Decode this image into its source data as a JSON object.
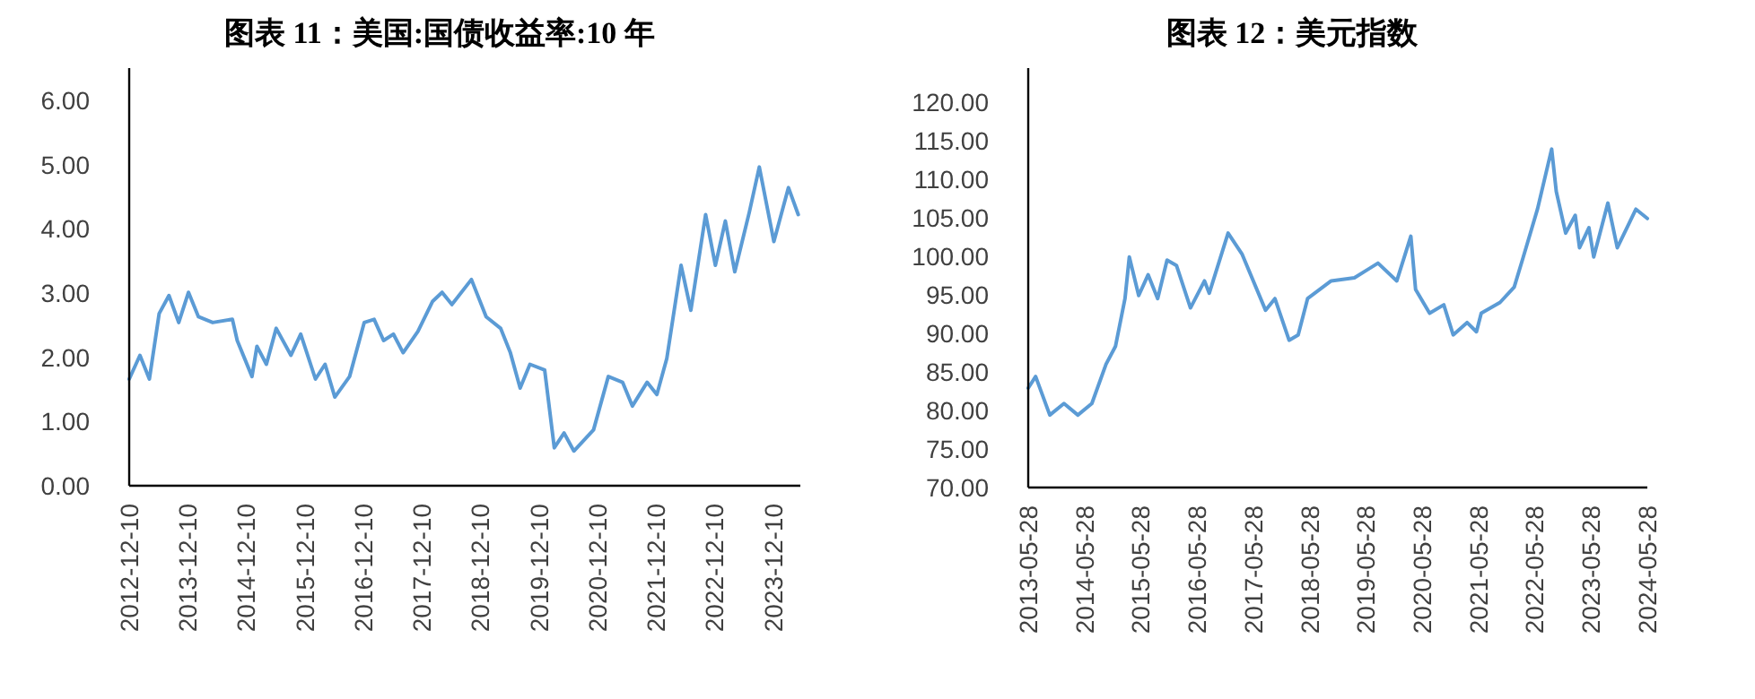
{
  "chart_data": [
    {
      "type": "line",
      "title": "图表 11：美国:国债收益率:10 年",
      "xlim": [
        "2012-12-10",
        "2024-05-28"
      ],
      "xticks": [
        "2012-12-10",
        "2013-12-10",
        "2014-12-10",
        "2015-12-10",
        "2016-12-10",
        "2017-12-10",
        "2018-12-10",
        "2019-12-10",
        "2020-12-10",
        "2021-12-10",
        "2022-12-10",
        "2023-12-10"
      ],
      "ylim": [
        0,
        6.5
      ],
      "yticks": [
        {
          "value": 0,
          "label": "0.00"
        },
        {
          "value": 1,
          "label": "1.00"
        },
        {
          "value": 2,
          "label": "2.00"
        },
        {
          "value": 3,
          "label": "3.00"
        },
        {
          "value": 4,
          "label": "4.00"
        },
        {
          "value": 5,
          "label": "5.00"
        },
        {
          "value": 6,
          "label": "6.00"
        }
      ],
      "marker": "none",
      "line_style": "solid",
      "series": [
        {
          "color": "#5b9bd5",
          "x": [
            "2012-12-10",
            "2013-02",
            "2013-04",
            "2013-06",
            "2013-08",
            "2013-10",
            "2013-12",
            "2014-02",
            "2014-05",
            "2014-09",
            "2014-10",
            "2015-01",
            "2015-02",
            "2015-04",
            "2015-06",
            "2015-09",
            "2015-11",
            "2016-02",
            "2016-04",
            "2016-06",
            "2016-09",
            "2016-12",
            "2017-02",
            "2017-04",
            "2017-06",
            "2017-08",
            "2017-11",
            "2018-02",
            "2018-04",
            "2018-06",
            "2018-10",
            "2019-01",
            "2019-04",
            "2019-06",
            "2019-08",
            "2019-10",
            "2020-01",
            "2020-03",
            "2020-05",
            "2020-07",
            "2020-11",
            "2021-02",
            "2021-05",
            "2021-07",
            "2021-10",
            "2021-12",
            "2022-02",
            "2022-05",
            "2022-07",
            "2022-10",
            "2022-12",
            "2023-02",
            "2023-04",
            "2023-07",
            "2023-09",
            "2023-12",
            "2024-03",
            "2024-05"
          ],
          "values": [
            1.66,
            2.03,
            1.66,
            2.68,
            2.96,
            2.54,
            3.01,
            2.63,
            2.54,
            2.59,
            2.26,
            1.7,
            2.17,
            1.89,
            2.45,
            2.03,
            2.36,
            1.66,
            1.89,
            1.38,
            1.7,
            2.54,
            2.59,
            2.26,
            2.36,
            2.07,
            2.4,
            2.87,
            3.01,
            2.82,
            3.21,
            2.63,
            2.45,
            2.07,
            1.52,
            1.89,
            1.8,
            0.59,
            0.82,
            0.54,
            0.87,
            1.7,
            1.61,
            1.24,
            1.61,
            1.42,
            1.98,
            3.43,
            2.73,
            4.22,
            3.43,
            4.12,
            3.33,
            4.26,
            4.96,
            3.8,
            4.64,
            4.22
          ]
        }
      ]
    },
    {
      "type": "line",
      "title": "图表 12：美元指数",
      "xlim": [
        "2013-05-28",
        "2024-05-28"
      ],
      "xticks": [
        "2013-05-28",
        "2014-05-28",
        "2015-05-28",
        "2016-05-28",
        "2017-05-28",
        "2018-05-28",
        "2019-05-28",
        "2020-05-28",
        "2021-05-28",
        "2022-05-28",
        "2023-05-28",
        "2024-05-28"
      ],
      "ylim": [
        70,
        124.4
      ],
      "yticks": [
        {
          "value": 70,
          "label": "70.00"
        },
        {
          "value": 75,
          "label": "75.00"
        },
        {
          "value": 80,
          "label": "80.00"
        },
        {
          "value": 85,
          "label": "85.00"
        },
        {
          "value": 90,
          "label": "90.00"
        },
        {
          "value": 95,
          "label": "95.00"
        },
        {
          "value": 100,
          "label": "100.00"
        },
        {
          "value": 105,
          "label": "105.00"
        },
        {
          "value": 110,
          "label": "110.00"
        },
        {
          "value": 115,
          "label": "115.00"
        },
        {
          "value": 120,
          "label": "120.00"
        }
      ],
      "marker": "none",
      "line_style": "solid",
      "series": [
        {
          "color": "#5b9bd5",
          "x": [
            "2013-05-28",
            "2013-07",
            "2013-10",
            "2014-01",
            "2014-04",
            "2014-07",
            "2014-10",
            "2014-12",
            "2015-02",
            "2015-03",
            "2015-05",
            "2015-07",
            "2015-09",
            "2015-11",
            "2016-01",
            "2016-04",
            "2016-07",
            "2016-08",
            "2016-12",
            "2017-03",
            "2017-08",
            "2017-10",
            "2018-01",
            "2018-03",
            "2018-05",
            "2018-10",
            "2019-03",
            "2019-08",
            "2019-12",
            "2020-03",
            "2020-04",
            "2020-07",
            "2020-10",
            "2020-12",
            "2021-03",
            "2021-05",
            "2021-06",
            "2021-10",
            "2022-01",
            "2022-03",
            "2022-06",
            "2022-09",
            "2022-10",
            "2022-12",
            "2023-02",
            "2023-03",
            "2023-05",
            "2023-06",
            "2023-09",
            "2023-11",
            "2024-03",
            "2024-05-28"
          ],
          "values": [
            82.9,
            84.4,
            79.4,
            80.9,
            79.4,
            80.9,
            86.0,
            88.3,
            94.5,
            99.9,
            94.9,
            97.6,
            94.5,
            99.5,
            98.8,
            93.3,
            96.8,
            95.2,
            103.0,
            100.3,
            93.0,
            94.5,
            89.1,
            89.8,
            94.5,
            96.8,
            97.2,
            99.1,
            96.8,
            102.6,
            95.7,
            92.6,
            93.7,
            89.8,
            91.4,
            90.2,
            92.6,
            94.0,
            96.0,
            99.9,
            106.1,
            113.9,
            108.4,
            103.0,
            105.3,
            101.1,
            103.7,
            99.9,
            106.9,
            101.1,
            106.1,
            104.9
          ]
        }
      ]
    }
  ]
}
